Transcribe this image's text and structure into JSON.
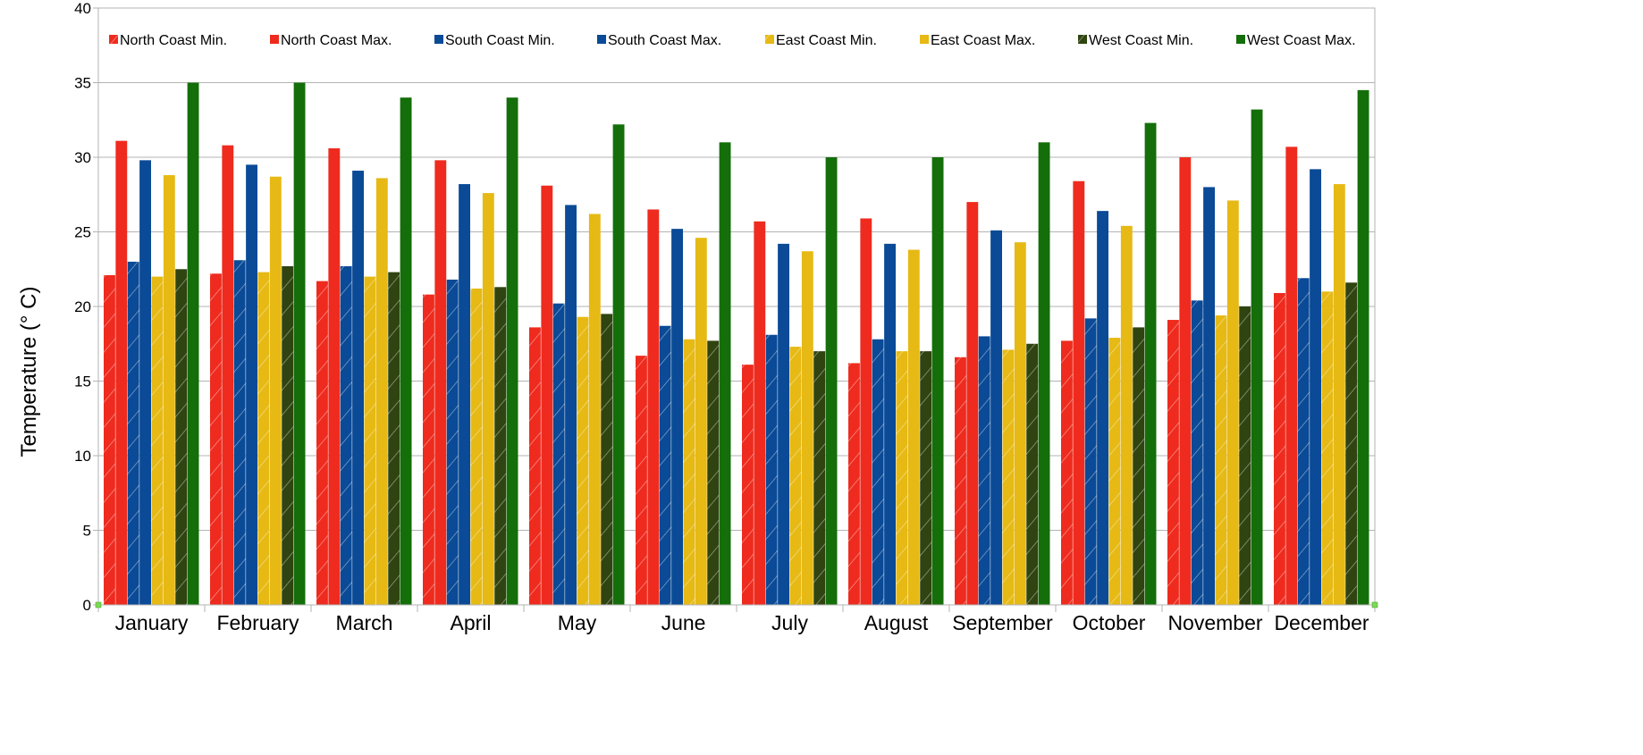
{
  "chart_data": {
    "type": "bar",
    "title": "",
    "xlabel": "",
    "ylabel": "Temperature (° C)",
    "ylim": [
      0,
      40
    ],
    "y_ticks": [
      "0",
      "5",
      "10",
      "15",
      "20",
      "25",
      "30",
      "35",
      "40"
    ],
    "grid": "horizontal",
    "legend_position": "top",
    "categories": [
      "January",
      "February",
      "March",
      "April",
      "May",
      "June",
      "July",
      "August",
      "September",
      "October",
      "November",
      "December"
    ],
    "series": [
      {
        "name": "North Coast Min.",
        "color": "#ee2b1e",
        "pattern": "hatched",
        "values": [
          22.1,
          22.2,
          21.7,
          20.8,
          18.6,
          16.7,
          16.1,
          16.2,
          16.6,
          17.7,
          19.1,
          20.9
        ]
      },
      {
        "name": "North Coast Max.",
        "color": "#ee2b1e",
        "pattern": "solid",
        "values": [
          31.1,
          30.8,
          30.6,
          29.8,
          28.1,
          26.5,
          25.7,
          25.9,
          27.0,
          28.4,
          30.0,
          30.7
        ]
      },
      {
        "name": "South Coast Min.",
        "color": "#0a4a96",
        "pattern": "hatched",
        "values": [
          23.0,
          23.1,
          22.7,
          21.8,
          20.2,
          18.7,
          18.1,
          17.8,
          18.0,
          19.2,
          20.4,
          21.9
        ]
      },
      {
        "name": "South Coast Max.",
        "color": "#0a4a96",
        "pattern": "solid",
        "values": [
          29.8,
          29.5,
          29.1,
          28.2,
          26.8,
          25.2,
          24.2,
          24.2,
          25.1,
          26.4,
          28.0,
          29.2
        ]
      },
      {
        "name": "East Coast Min.",
        "color": "#e6b914",
        "pattern": "hatched",
        "values": [
          22.0,
          22.3,
          22.0,
          21.2,
          19.3,
          17.8,
          17.3,
          17.0,
          17.1,
          17.9,
          19.4,
          21.0
        ]
      },
      {
        "name": "East Coast Max.",
        "color": "#e6b914",
        "pattern": "solid",
        "values": [
          28.8,
          28.7,
          28.6,
          27.6,
          26.2,
          24.6,
          23.7,
          23.8,
          24.3,
          25.4,
          27.1,
          28.2
        ]
      },
      {
        "name": "West Coast Min.",
        "color": "#2f4410",
        "pattern": "hatched",
        "values": [
          22.5,
          22.7,
          22.3,
          21.3,
          19.5,
          17.7,
          17.0,
          17.0,
          17.5,
          18.6,
          20.0,
          21.6
        ]
      },
      {
        "name": "West Coast Max.",
        "color": "#146e0a",
        "pattern": "solid",
        "values": [
          35.0,
          35.0,
          34.0,
          34.0,
          32.2,
          31.0,
          30.0,
          30.0,
          31.0,
          32.3,
          33.2,
          34.5
        ]
      }
    ]
  }
}
